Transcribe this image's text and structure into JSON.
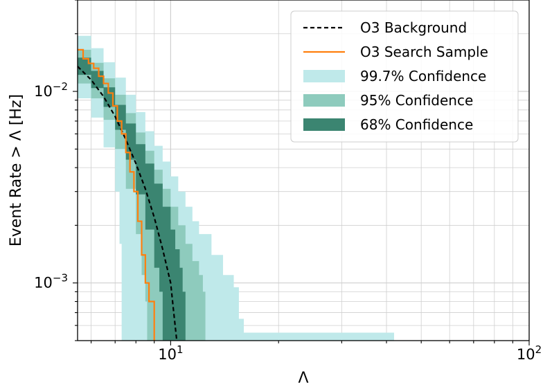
{
  "chart_data": {
    "type": "line",
    "xlabel": "Λ",
    "ylabel": "Event Rate > Λ [Hz]",
    "xscale": "log",
    "yscale": "log",
    "xlim": [
      5.5,
      100
    ],
    "ylim": [
      0.0005,
      0.03
    ],
    "grid": true,
    "legend_position": "top-right",
    "x_ticks": [
      {
        "value": 10,
        "base": "10",
        "exp": "1"
      },
      {
        "value": 100,
        "base": "10",
        "exp": "2"
      }
    ],
    "y_ticks": [
      {
        "value": 0.01,
        "base": "10",
        "exp": "−2"
      },
      {
        "value": 0.001,
        "base": "10",
        "exp": "−3"
      }
    ],
    "bands": [
      {
        "name": "99.7% Confidence",
        "color": "#bfe9ea",
        "upper": [
          [
            5.5,
            0.0195
          ],
          [
            6.0,
            0.0168
          ],
          [
            6.5,
            0.0142
          ],
          [
            7.0,
            0.0118
          ],
          [
            7.5,
            0.0096
          ],
          [
            8.0,
            0.0078
          ],
          [
            8.5,
            0.0062
          ],
          [
            9.0,
            0.0052
          ],
          [
            9.5,
            0.0043
          ],
          [
            10.0,
            0.0036
          ],
          [
            10.5,
            0.003
          ],
          [
            11.0,
            0.0025
          ],
          [
            11.5,
            0.0021
          ],
          [
            12.0,
            0.0018
          ],
          [
            13.0,
            0.0014
          ],
          [
            14.0,
            0.0011
          ],
          [
            15.0,
            0.00095
          ],
          [
            15.5,
            0.00065
          ],
          [
            16.0,
            0.00055
          ],
          [
            42.0,
            0.00052
          ]
        ],
        "lower": [
          [
            5.5,
            0.0092
          ],
          [
            6.0,
            0.0073
          ],
          [
            6.5,
            0.0051
          ],
          [
            7.0,
            0.003
          ],
          [
            7.2,
            0.0016
          ],
          [
            7.3,
            0.0005
          ]
        ]
      },
      {
        "name": "95% Confidence",
        "color": "#8ecbbd",
        "upper": [
          [
            5.5,
            0.0165
          ],
          [
            6.0,
            0.0141
          ],
          [
            6.5,
            0.0117
          ],
          [
            7.0,
            0.0096
          ],
          [
            7.5,
            0.0077
          ],
          [
            8.0,
            0.0061
          ],
          [
            8.5,
            0.0049
          ],
          [
            9.0,
            0.0039
          ],
          [
            9.5,
            0.0031
          ],
          [
            10.0,
            0.0025
          ],
          [
            10.5,
            0.002
          ],
          [
            11.0,
            0.0016
          ],
          [
            11.5,
            0.0013
          ],
          [
            12.0,
            0.0011
          ],
          [
            12.3,
            0.0009
          ],
          [
            12.5,
            0.0005
          ]
        ],
        "lower": [
          [
            5.5,
            0.011
          ],
          [
            6.0,
            0.0092
          ],
          [
            6.5,
            0.0071
          ],
          [
            7.0,
            0.005
          ],
          [
            7.5,
            0.0031
          ],
          [
            8.0,
            0.0018
          ],
          [
            8.3,
            0.0011
          ],
          [
            8.5,
            0.0008
          ],
          [
            8.6,
            0.0005
          ]
        ]
      },
      {
        "name": "68% Confidence",
        "color": "#3b8571",
        "upper": [
          [
            5.5,
            0.015
          ],
          [
            6.0,
            0.0128
          ],
          [
            6.5,
            0.0105
          ],
          [
            7.0,
            0.0085
          ],
          [
            7.5,
            0.0068
          ],
          [
            8.0,
            0.0053
          ],
          [
            8.5,
            0.0042
          ],
          [
            9.0,
            0.0033
          ],
          [
            9.5,
            0.0025
          ],
          [
            10.0,
            0.0019
          ],
          [
            10.3,
            0.0015
          ],
          [
            10.6,
            0.0012
          ],
          [
            10.8,
            0.0009
          ],
          [
            11.0,
            0.0005
          ]
        ],
        "lower": [
          [
            5.5,
            0.0122
          ],
          [
            6.0,
            0.0104
          ],
          [
            6.5,
            0.0083
          ],
          [
            7.0,
            0.0063
          ],
          [
            7.5,
            0.0044
          ],
          [
            8.0,
            0.0029
          ],
          [
            8.5,
            0.0019
          ],
          [
            9.0,
            0.0012
          ],
          [
            9.3,
            0.0009
          ],
          [
            9.5,
            0.0005
          ]
        ]
      }
    ],
    "series": [
      {
        "name": "O3 Background",
        "style": "dashed",
        "color": "#000000",
        "x": [
          5.5,
          6.0,
          6.5,
          7.0,
          7.5,
          8.0,
          8.5,
          9.0,
          9.5,
          10.0,
          10.2,
          10.4
        ],
        "y": [
          0.0135,
          0.0115,
          0.0094,
          0.0074,
          0.0056,
          0.0042,
          0.0031,
          0.0022,
          0.0015,
          0.001,
          0.0007,
          0.0005
        ]
      },
      {
        "name": "O3 Search Sample",
        "style": "step",
        "color": "#ff7f0e",
        "x": [
          5.5,
          5.7,
          5.9,
          6.1,
          6.3,
          6.5,
          6.7,
          6.9,
          7.1,
          7.3,
          7.5,
          7.7,
          7.9,
          8.1,
          8.3,
          8.5,
          8.7,
          8.9,
          9.0
        ],
        "y": [
          0.0165,
          0.0148,
          0.014,
          0.0132,
          0.012,
          0.011,
          0.0098,
          0.0084,
          0.007,
          0.006,
          0.0048,
          0.0038,
          0.003,
          0.0021,
          0.0014,
          0.001,
          0.0008,
          0.0008,
          0.0005
        ]
      }
    ],
    "legend": [
      {
        "label": "O3 Background",
        "kind": "dashed",
        "color": "#000000"
      },
      {
        "label": "O3 Search Sample",
        "kind": "line",
        "color": "#ff7f0e"
      },
      {
        "label": "99.7% Confidence",
        "kind": "patch",
        "color": "#bfe9ea"
      },
      {
        "label": "95% Confidence",
        "kind": "patch",
        "color": "#8ecbbd"
      },
      {
        "label": "68% Confidence",
        "kind": "patch",
        "color": "#3b8571"
      }
    ]
  }
}
